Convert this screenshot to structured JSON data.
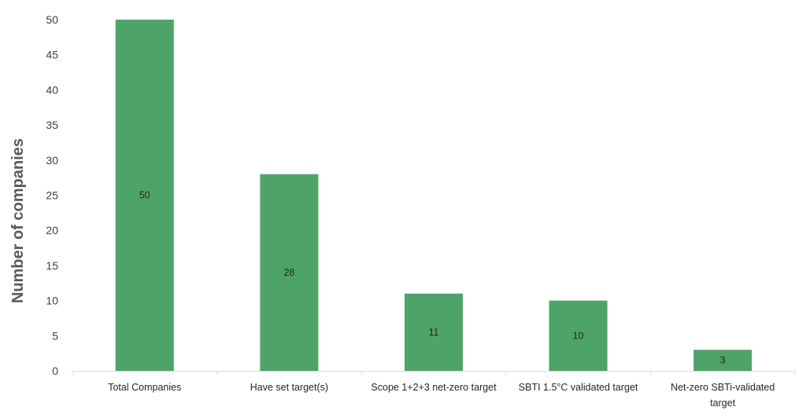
{
  "chart_data": {
    "type": "bar",
    "categories": [
      [
        "Total Companies"
      ],
      [
        "Have set target(s)"
      ],
      [
        "Scope 1+2+3 net-zero target"
      ],
      [
        "SBTI 1.5°C validated target"
      ],
      [
        "Net-zero SBTi-validated",
        "target"
      ]
    ],
    "values": [
      50,
      28,
      11,
      10,
      3
    ],
    "data_labels": [
      "50",
      "28",
      "11",
      "10",
      "3"
    ],
    "title": "",
    "xlabel": "",
    "ylabel": "Number of companies",
    "ylim": [
      0,
      50
    ],
    "yticks": [
      0,
      5,
      10,
      15,
      20,
      25,
      30,
      35,
      40,
      45,
      50
    ],
    "grid": false,
    "legend": "none",
    "bar_color": "#4EA468",
    "axis_color": "#d9d9d9"
  }
}
